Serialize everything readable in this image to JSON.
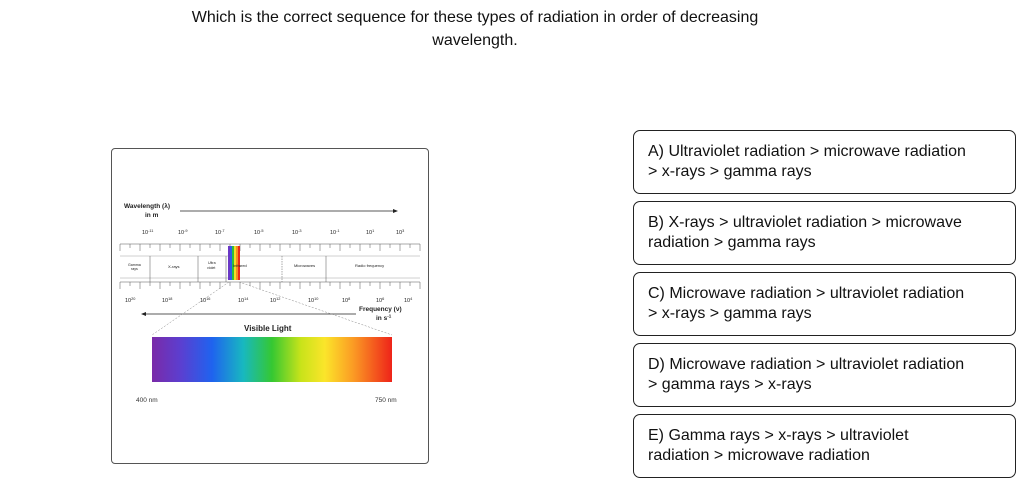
{
  "question": {
    "line1": "Which is the correct sequence for these types of radiation in order of decreasing",
    "line2": "wavelength."
  },
  "figure": {
    "wavelength_label": "Wavelength (λ)",
    "wavelength_unit": "in m",
    "wavelength_ticks": [
      {
        "base": "10",
        "exp": "-11"
      },
      {
        "base": "10",
        "exp": "-9"
      },
      {
        "base": "10",
        "exp": "-7"
      },
      {
        "base": "10",
        "exp": "-5"
      },
      {
        "base": "10",
        "exp": "-3"
      },
      {
        "base": "10",
        "exp": "-1"
      },
      {
        "base": "10",
        "exp": "1"
      },
      {
        "base": "10",
        "exp": "3"
      }
    ],
    "regions": [
      "Gamma rays",
      "X-rays",
      "Ultra violet",
      "Infrared",
      "Microwaves",
      "Radio frequency"
    ],
    "frequency_ticks": [
      {
        "base": "10",
        "exp": "20"
      },
      {
        "base": "10",
        "exp": "18"
      },
      {
        "base": "10",
        "exp": "16"
      },
      {
        "base": "10",
        "exp": "14"
      },
      {
        "base": "10",
        "exp": "12"
      },
      {
        "base": "10",
        "exp": "10"
      },
      {
        "base": "10",
        "exp": "8"
      },
      {
        "base": "10",
        "exp": "6"
      },
      {
        "base": "10",
        "exp": "4"
      }
    ],
    "frequency_label": "Frequency (ν)",
    "frequency_unit": "in s",
    "frequency_unit_exp": "-1",
    "visible_label": "Visible Light",
    "visible_min": "400 nm",
    "visible_max": "750 nm"
  },
  "options": [
    {
      "line1": "A) Ultraviolet radiation > microwave radiation",
      "line2": "> x-rays > gamma rays"
    },
    {
      "line1": "B) X-rays > ultraviolet radiation > microwave",
      "line2": "radiation > gamma rays"
    },
    {
      "line1": "C) Microwave radiation > ultraviolet radiation",
      "line2": "> x-rays > gamma rays"
    },
    {
      "line1": "D) Microwave radiation > ultraviolet radiation",
      "line2": "> gamma rays > x-rays"
    },
    {
      "line1": "E) Gamma rays > x-rays > ultraviolet",
      "line2": "radiation > microwave radiation"
    }
  ]
}
